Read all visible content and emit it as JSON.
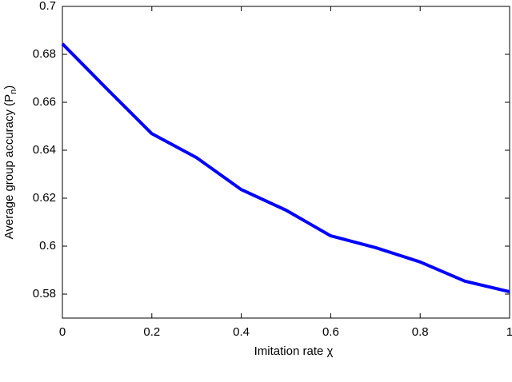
{
  "chart_data": {
    "type": "line",
    "xlabel": "Imitation rate χ",
    "ylabel": [
      "Average group accuracy (P",
      "n",
      ")"
    ],
    "x": [
      0,
      0.1,
      0.2,
      0.3,
      0.4,
      0.5,
      0.6,
      0.7,
      0.8,
      0.9,
      1
    ],
    "series": [
      {
        "color": "#0000ff",
        "values": [
          0.6844,
          0.6655,
          0.6469,
          0.6369,
          0.6236,
          0.615,
          0.6043,
          0.5994,
          0.5934,
          0.5854,
          0.581
        ]
      }
    ],
    "xlim": [
      0,
      1
    ],
    "xticks": [
      0,
      0.2,
      0.4,
      0.6,
      0.8,
      1
    ],
    "ylim": [
      0.57,
      0.7
    ],
    "yticks": [
      0.58,
      0.6,
      0.62,
      0.64,
      0.66,
      0.68,
      0.7
    ],
    "grid": false
  }
}
